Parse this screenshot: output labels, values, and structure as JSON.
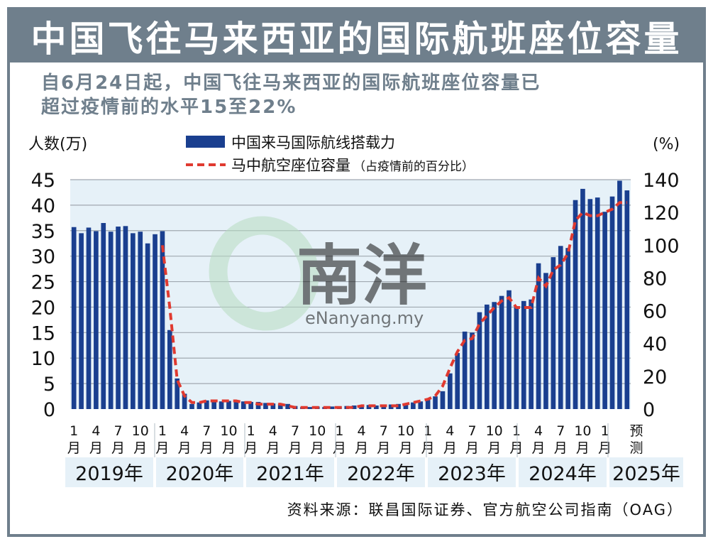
{
  "title": "中国飞往马来西亚的国际航班座位容量",
  "subtitle": "自6月24日起，中国飞往马来西亚的国际航班座位容量已\n超过疫情前的水平15至22%",
  "source": "资料来源：联昌国际证券、官方航空公司指南（OAG）",
  "watermark": {
    "brand": "e南洋",
    "url": "eNanyang.my"
  },
  "colors": {
    "bar": "#1a3f8f",
    "line": "#e03a30",
    "grid": "#a0a8b0",
    "plot_bg": "#e6f1f8",
    "header": "#6f7f8c"
  },
  "chart_data": {
    "type": "bar",
    "left_axis": {
      "label": "人数(万)",
      "ylim": [
        0,
        45
      ],
      "ticks": [
        0,
        5,
        10,
        15,
        20,
        25,
        30,
        35,
        40,
        45
      ]
    },
    "right_axis": {
      "label": "(%)",
      "ylim": [
        0,
        140
      ],
      "ticks": [
        0,
        20,
        40,
        60,
        80,
        100,
        120,
        140
      ]
    },
    "series": [
      {
        "name": "中国来马国际航线搭载力",
        "type": "bar",
        "axis": "left",
        "values": [
          35.7,
          34.5,
          35.6,
          34.9,
          36.5,
          34.8,
          35.8,
          35.9,
          34.5,
          34.8,
          32.5,
          34.3,
          34.9,
          15.5,
          6.0,
          3.0,
          1.0,
          1.3,
          1.7,
          1.6,
          1.5,
          1.6,
          1.7,
          1.5,
          1.4,
          1.4,
          1.2,
          1.1,
          1.0,
          1.0,
          0.6,
          0.4,
          0.4,
          0.5,
          0.4,
          0.5,
          0.5,
          0.6,
          0.7,
          0.8,
          0.8,
          0.7,
          0.7,
          0.9,
          1.0,
          1.1,
          1.3,
          1.5,
          1.8,
          2.5,
          3.5,
          7.0,
          11.0,
          15.2,
          15.0,
          19.0,
          20.5,
          21.0,
          22.2,
          23.3,
          20.0,
          21.2,
          21.5,
          28.6,
          26.7,
          29.8,
          32.0,
          31.6,
          41.0,
          43.2,
          41.2,
          41.5,
          38.7,
          41.7,
          44.8,
          42.9
        ]
      },
      {
        "name": "马中航空座位容量",
        "name_note": "（占疫情前的百分比）",
        "type": "line",
        "axis": "right",
        "values": [
          null,
          null,
          null,
          null,
          null,
          null,
          null,
          null,
          null,
          null,
          null,
          null,
          100,
          62,
          18,
          8,
          4,
          4,
          5,
          5,
          5,
          5,
          5,
          4,
          4,
          3,
          3,
          3,
          3,
          2,
          1,
          1,
          1,
          1,
          1,
          1,
          1,
          1,
          1,
          2,
          2,
          2,
          2,
          2,
          2,
          3,
          4,
          5,
          6,
          8,
          14,
          25,
          35,
          42,
          43,
          52,
          57,
          62,
          66,
          68,
          62,
          62,
          62,
          80,
          75,
          85,
          88,
          95,
          115,
          120,
          118,
          118,
          120,
          122,
          126,
          126
        ]
      }
    ],
    "month_labels": [
      "1\n月",
      "4\n月",
      "7\n月",
      "10\n月",
      "1\n月",
      "4\n月",
      "7\n月",
      "10\n月",
      "1\n月",
      "4\n月",
      "7\n月",
      "10\n月",
      "1\n月",
      "4\n月",
      "7\n月",
      "10\n月",
      "1\n月",
      "4\n月",
      "7\n月",
      "10\n月",
      "1\n月",
      "4\n月",
      "7\n月",
      "10\n月",
      "1\n月"
    ],
    "forecast_label": "预\n测",
    "years": [
      "2019年",
      "2020年",
      "2021年",
      "2022年",
      "2023年",
      "2024年",
      "2025年"
    ]
  }
}
